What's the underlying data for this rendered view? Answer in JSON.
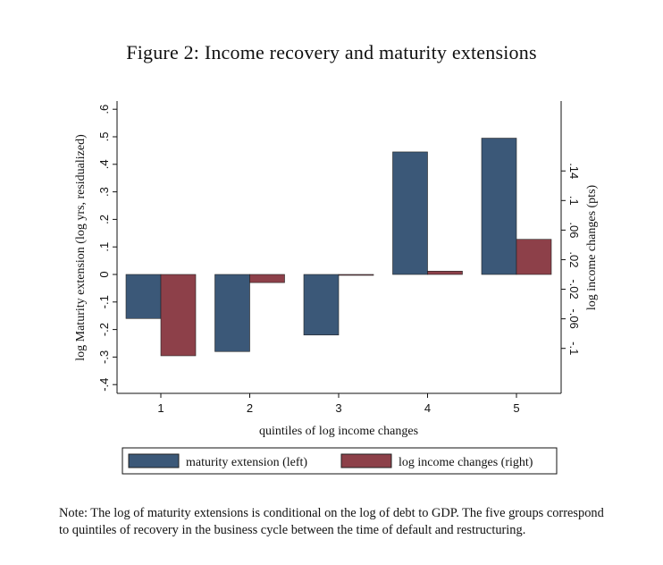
{
  "figure": {
    "title": "Figure 2: Income recovery and maturity extensions",
    "note": "Note: The log of maturity extensions is conditional on the log of debt to GDP. The five groups correspond to quintiles of recovery in the business cycle between the time of default and restructuring."
  },
  "chart_data": {
    "type": "bar",
    "title": "",
    "xlabel": "quintiles of log income changes",
    "ylabel": "log Maturity extension (log yrs, residualized)",
    "y2label": "log income changes (pts)",
    "categories": [
      "1",
      "2",
      "3",
      "4",
      "5"
    ],
    "ylim": [
      -0.4,
      0.6
    ],
    "yticks": [
      ".6",
      ".5",
      ".4",
      ".3",
      ".2",
      ".1",
      "0",
      "-.1",
      "-.2",
      "-.3",
      "-.4"
    ],
    "yticks_values": [
      0.6,
      0.5,
      0.4,
      0.3,
      0.2,
      0.1,
      0,
      -0.1,
      -0.2,
      -0.3,
      -0.4
    ],
    "y2lim": [
      -0.117,
      0.16
    ],
    "y2ticks": [
      ".14",
      ".1",
      ".06",
      ".02",
      "-.02",
      "-.06",
      "-.1"
    ],
    "y2ticks_values": [
      0.14,
      0.1,
      0.06,
      0.02,
      -0.02,
      -0.06,
      -0.1
    ],
    "series": [
      {
        "name": "maturity extension (left)",
        "axis": "left",
        "color": "#3b5878",
        "values": [
          -0.16,
          -0.28,
          -0.22,
          0.445,
          0.495
        ]
      },
      {
        "name": "log income changes (right)",
        "axis": "right",
        "color": "#8d4049",
        "values": [
          -0.11,
          -0.011,
          -0.001,
          0.0045,
          0.0475
        ]
      }
    ],
    "legend": {
      "position": "bottom",
      "entries": [
        "maturity extension (left)",
        "log income changes (right)"
      ]
    },
    "grid": false
  }
}
